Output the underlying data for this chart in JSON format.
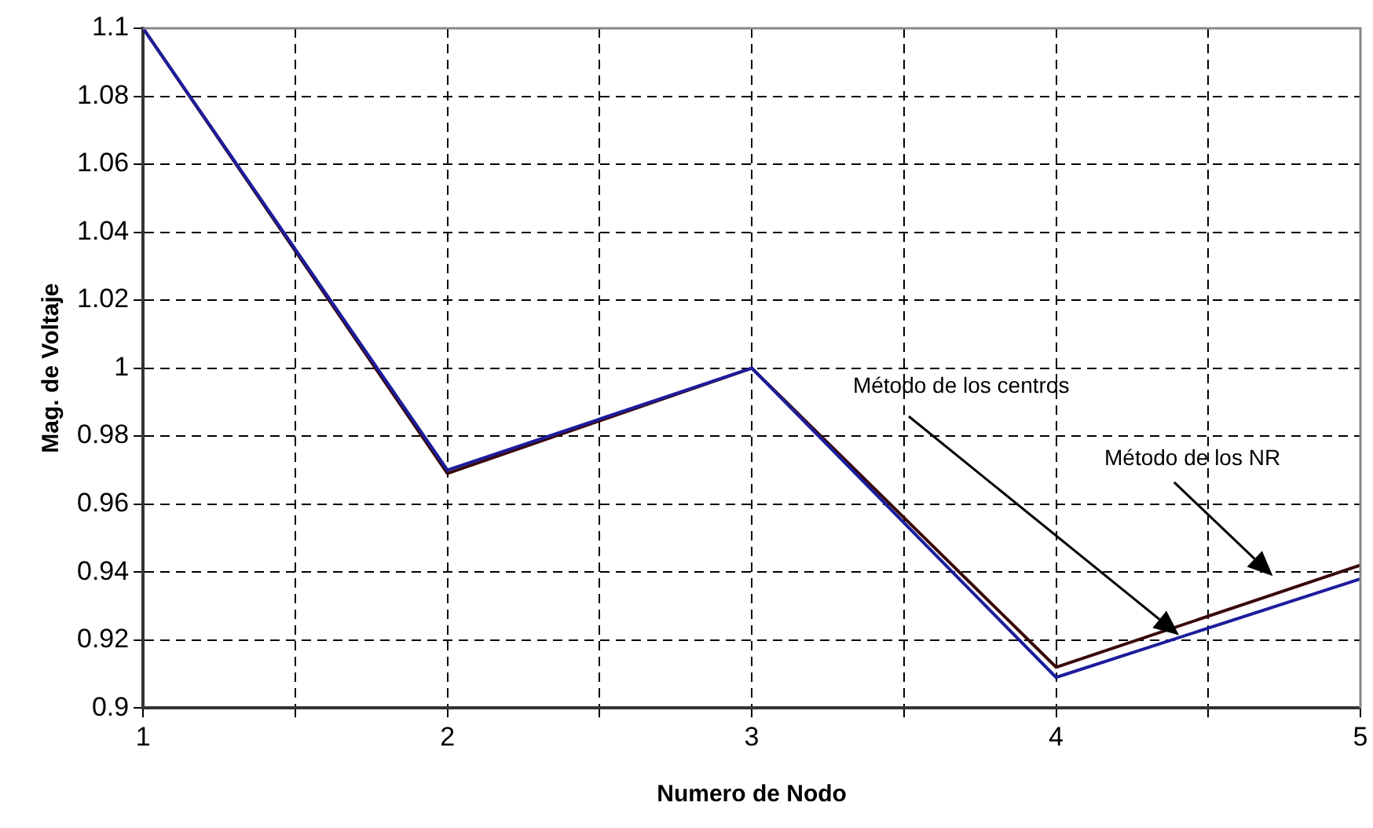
{
  "chart_data": {
    "type": "line",
    "xlabel": "Numero de Nodo",
    "ylabel": "Mag. de Voltaje",
    "x": [
      1,
      2,
      3,
      4,
      5
    ],
    "series": [
      {
        "color": "#1c1c9c",
        "values": [
          1.1,
          0.97,
          1.0,
          0.909,
          0.938
        ]
      },
      {
        "color": "#3a0808",
        "values": [
          1.1,
          0.969,
          1.0,
          0.912,
          0.942
        ]
      }
    ],
    "xlim": [
      1,
      5
    ],
    "xticks": [
      1,
      {
        "value": 1.5,
        "label": null
      },
      2,
      {
        "value": 2.5,
        "label": null
      },
      3,
      {
        "value": 3.5,
        "label": null
      },
      4,
      {
        "value": 4.5,
        "label": null
      },
      5
    ],
    "ylim": [
      0.9,
      1.1
    ],
    "yticks": [
      0.9,
      0.92,
      0.94,
      0.96,
      0.98,
      1,
      1.02,
      1.04,
      1.06,
      1.08,
      1.1
    ],
    "grid": true,
    "legend": false,
    "marker": "none",
    "line_style": "solid",
    "annotations": [
      "Método de los centros",
      "Método de los NR"
    ]
  }
}
